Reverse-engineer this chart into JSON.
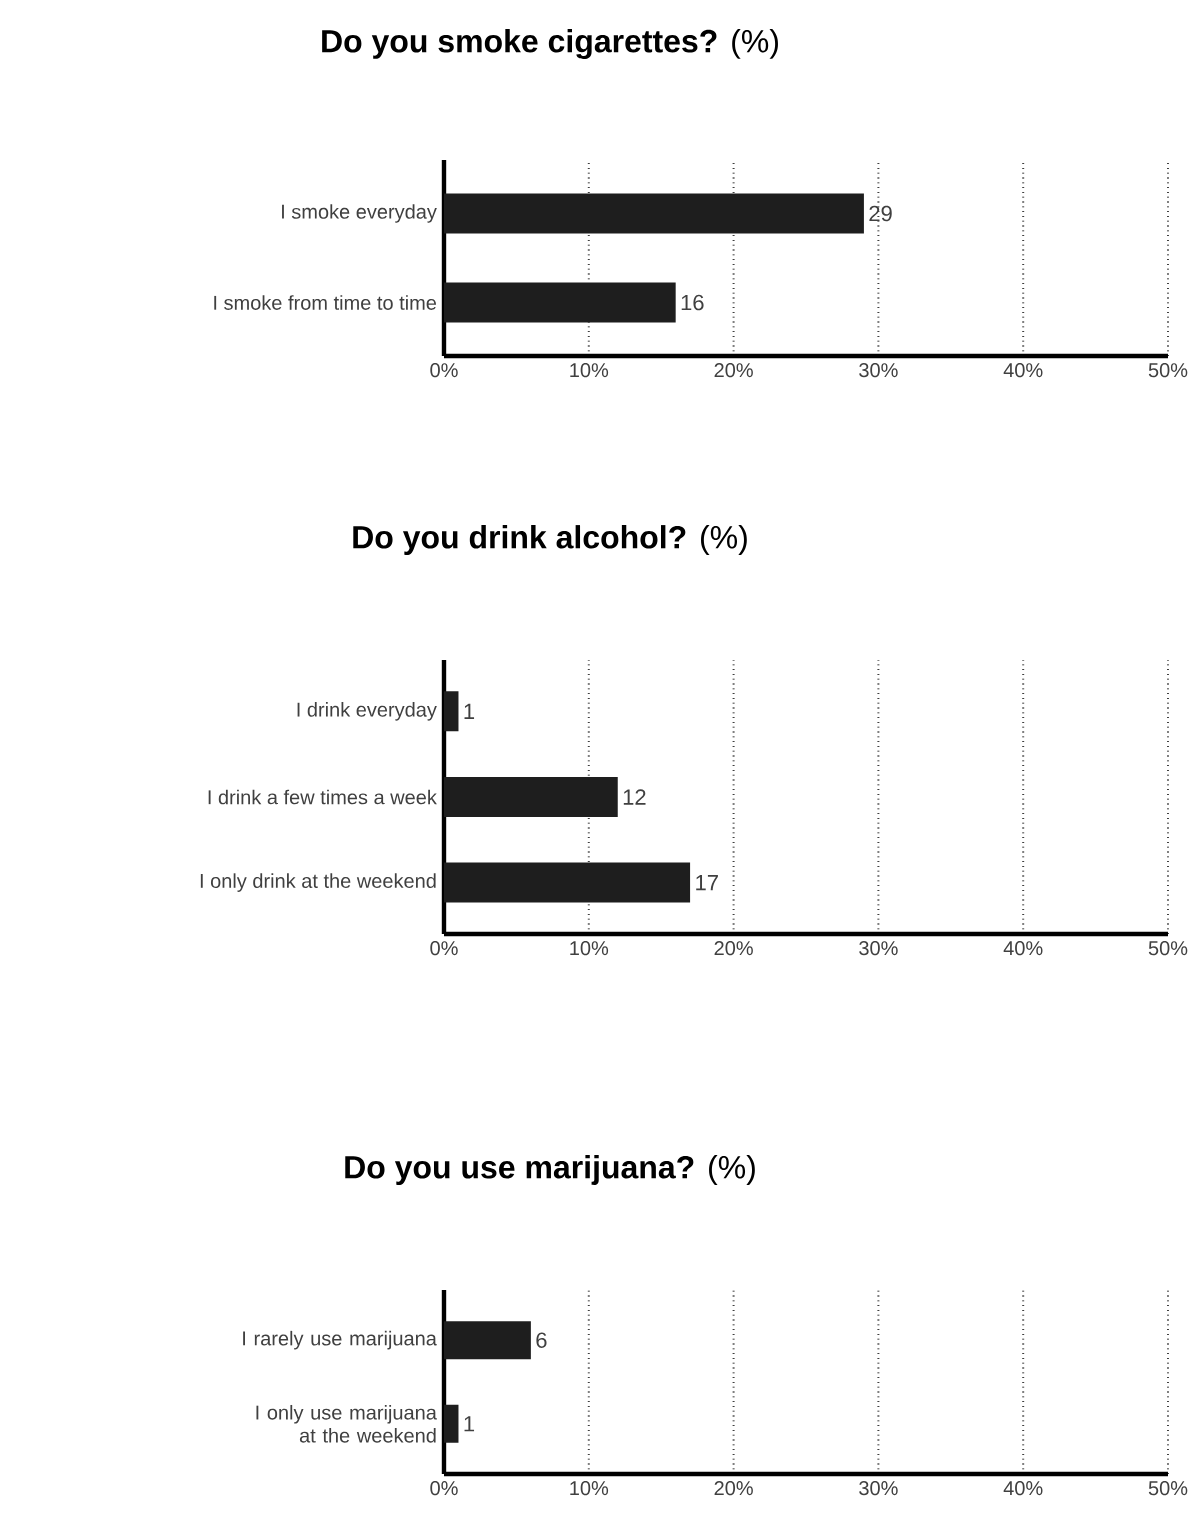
{
  "chart_data": [
    {
      "type": "bar",
      "orientation": "horizontal",
      "title": "**Do you smoke cigarettes?** (%)",
      "categories": [
        "I smoke everyday",
        "I smoke from time to time"
      ],
      "values": [
        29,
        16
      ],
      "color": "#1e1e1e",
      "data_labels": true,
      "xlim": [
        0,
        50
      ],
      "xticks": [
        {
          "value": 0,
          "label": "0%"
        },
        {
          "value": 10,
          "label": "10%"
        },
        {
          "value": 20,
          "label": "20%"
        },
        {
          "value": 30,
          "label": "30%"
        },
        {
          "value": 40,
          "label": "40%"
        },
        {
          "value": 50,
          "label": "50%"
        }
      ],
      "grid": "x"
    },
    {
      "type": "bar",
      "orientation": "horizontal",
      "title": "**Do you drink alcohol?** (%)",
      "categories": [
        "I drink everyday",
        "I drink a few times a week",
        "I only drink at the weekend"
      ],
      "values": [
        1,
        12,
        17
      ],
      "color": "#1e1e1e",
      "data_labels": true,
      "xlim": [
        0,
        50
      ],
      "xticks": [
        {
          "value": 0,
          "label": "0%"
        },
        {
          "value": 10,
          "label": "10%"
        },
        {
          "value": 20,
          "label": "20%"
        },
        {
          "value": 30,
          "label": "30%"
        },
        {
          "value": 40,
          "label": "40%"
        },
        {
          "value": 50,
          "label": "50%"
        }
      ],
      "grid": "x"
    },
    {
      "type": "bar",
      "orientation": "horizontal",
      "title": "**Do you use marijuana?** (%)",
      "categories": [
        "I rarely use marijuana",
        "I only use marijuana at the weekend"
      ],
      "values": [
        6,
        1
      ],
      "color": "#1e1e1e",
      "data_labels": true,
      "xlim": [
        0,
        50
      ],
      "xticks": [
        {
          "value": 0,
          "label": "0%"
        },
        {
          "value": 10,
          "label": "10%"
        },
        {
          "value": 20,
          "label": "20%"
        },
        {
          "value": 30,
          "label": "30%"
        },
        {
          "value": 40,
          "label": "40%"
        },
        {
          "value": 50,
          "label": "50%"
        }
      ],
      "grid": "x"
    }
  ]
}
